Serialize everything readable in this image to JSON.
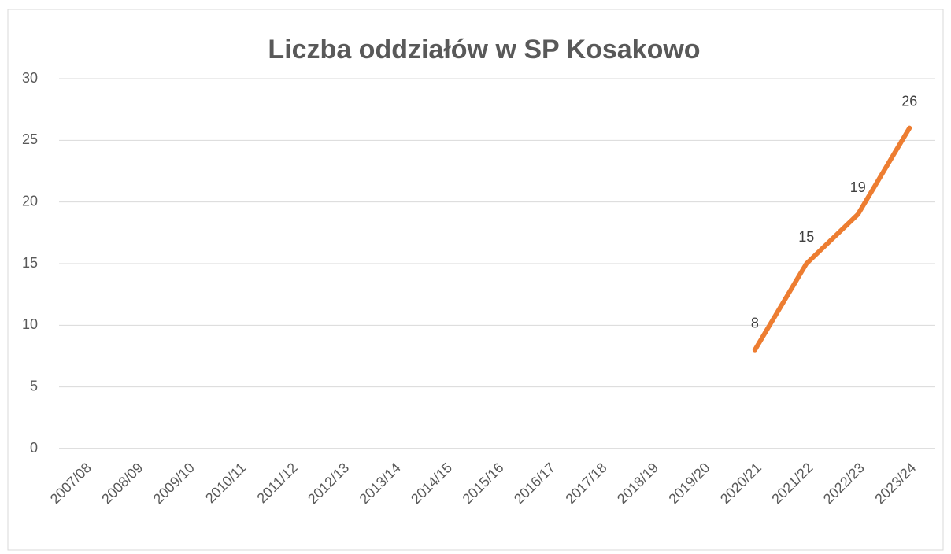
{
  "chart_data": {
    "type": "line",
    "title": "Liczba oddziałów w SP Kosakowo",
    "categories": [
      "2007/08",
      "2008/09",
      "2009/10",
      "2010/11",
      "2011/12",
      "2012/13",
      "2013/14",
      "2014/15",
      "2015/16",
      "2016/17",
      "2017/18",
      "2018/19",
      "2019/20",
      "2020/21",
      "2021/22",
      "2022/23",
      "2023/24"
    ],
    "values": [
      null,
      null,
      null,
      null,
      null,
      null,
      null,
      null,
      null,
      null,
      null,
      null,
      null,
      8,
      15,
      19,
      26
    ],
    "color": "#ed7d31",
    "ylim": [
      0,
      30
    ],
    "yticks": [
      0,
      5,
      10,
      15,
      20,
      25,
      30
    ],
    "grid": true
  }
}
